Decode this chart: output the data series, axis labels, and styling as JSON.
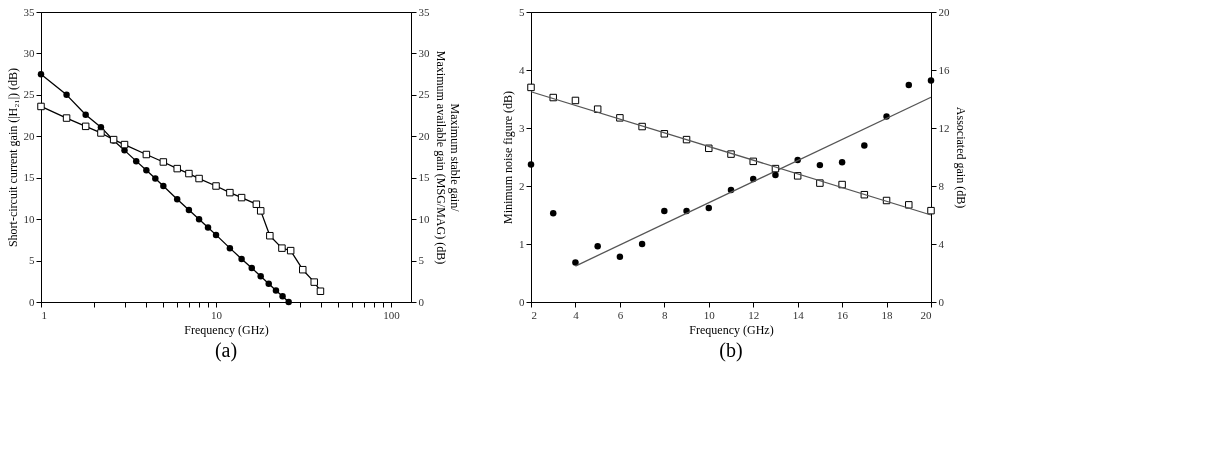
{
  "chart_data": [
    {
      "type": "line",
      "xlabel": "Frequency (GHz)",
      "ylabel": "Short-circuit current gain (|H₂₁|) (dB)",
      "y2label": "Maximum stable gain/\nMaximum available gain (MSG/MAG) (dB)",
      "annotations": [
        "(a)"
      ],
      "log": "x",
      "xlim": [
        1,
        130
      ],
      "xticks": [
        1,
        {
          "value": 2,
          "label": null
        },
        {
          "value": 3,
          "label": null
        },
        {
          "value": 4,
          "label": null
        },
        {
          "value": 5,
          "label": null
        },
        {
          "value": 6,
          "label": null
        },
        {
          "value": 7,
          "label": null
        },
        {
          "value": 8,
          "label": null
        },
        {
          "value": 9,
          "label": null
        },
        10,
        {
          "value": 20,
          "label": null
        },
        {
          "value": 30,
          "label": null
        },
        {
          "value": 40,
          "label": null
        },
        {
          "value": 50,
          "label": null
        },
        {
          "value": 60,
          "label": null
        },
        {
          "value": 70,
          "label": null
        },
        {
          "value": 80,
          "label": null
        },
        {
          "value": 90,
          "label": null
        },
        100
      ],
      "ylim": [
        0,
        35
      ],
      "yticks": [
        0,
        5,
        10,
        15,
        20,
        25,
        30,
        35
      ],
      "y2lim": [
        0,
        35
      ],
      "y2ticks": [
        0,
        5,
        10,
        15,
        20,
        25,
        30,
        35
      ],
      "series": [
        {
          "marker": "circle",
          "color": "#000000",
          "x": [
            1,
            1.4,
            1.8,
            2.2,
            2.6,
            3,
            3.5,
            4,
            4.5,
            5,
            6,
            7,
            8,
            9,
            10,
            12,
            14,
            16,
            18,
            20,
            22,
            24,
            26
          ],
          "values": [
            27.5,
            25.0,
            22.6,
            21.1,
            19.5,
            18.3,
            17.0,
            15.9,
            14.9,
            14.0,
            12.4,
            11.1,
            10.0,
            9.0,
            8.1,
            6.5,
            5.2,
            4.1,
            3.1,
            2.2,
            1.4,
            0.7,
            0.0
          ]
        },
        {
          "marker": "square",
          "axis": "y2",
          "color": "#000000",
          "x": [
            1,
            1.4,
            1.8,
            2.2,
            2.6,
            3,
            4,
            5,
            6,
            7,
            8,
            10,
            12,
            14,
            17,
            18,
            20.3,
            23.8,
            26.7,
            31.3,
            36.4,
            39.5
          ],
          "values": [
            23.6,
            22.2,
            21.2,
            20.4,
            19.6,
            19.0,
            17.8,
            16.9,
            16.1,
            15.5,
            14.9,
            14.0,
            13.2,
            12.6,
            11.8,
            11.0,
            8.0,
            6.5,
            6.2,
            3.9,
            2.4,
            1.3
          ]
        }
      ]
    },
    {
      "type": "scatter",
      "xlabel": "Frequency (GHz)",
      "ylabel": "Minimum noise figure (dB)",
      "y2label": "Associated gain (dB)",
      "annotations": [
        "(b)"
      ],
      "xlim": [
        2,
        20
      ],
      "xticks": [
        2,
        4,
        6,
        8,
        10,
        12,
        14,
        16,
        18,
        20
      ],
      "ylim": [
        0,
        5
      ],
      "yticks": [
        0,
        1,
        2,
        3,
        4,
        5
      ],
      "y2lim": [
        0,
        20
      ],
      "y2ticks": [
        0,
        4,
        8,
        12,
        16,
        20
      ],
      "series": [
        {
          "marker": "circle",
          "color": "#000000",
          "x": [
            2,
            3,
            4,
            5,
            6,
            7,
            8,
            9,
            10,
            11,
            12,
            13,
            14,
            15,
            16,
            17,
            18,
            19,
            20
          ],
          "values": [
            2.37,
            1.53,
            0.68,
            0.96,
            0.78,
            1.0,
            1.57,
            1.57,
            1.62,
            1.93,
            2.12,
            2.19,
            2.45,
            2.36,
            2.41,
            2.7,
            3.2,
            3.74,
            3.82
          ]
        },
        {
          "type": "line",
          "marker": "none",
          "color": "#555555",
          "x": [
            4,
            20
          ],
          "values": [
            0.62,
            3.53
          ]
        },
        {
          "marker": "square",
          "axis": "y2",
          "color": "#000000",
          "x": [
            2,
            3,
            4,
            5,
            6,
            7,
            8,
            9,
            10,
            11,
            12,
            13,
            14,
            15,
            16,
            17,
            18,
            19,
            20
          ],
          "values": [
            14.8,
            14.1,
            13.9,
            13.3,
            12.7,
            12.1,
            11.6,
            11.2,
            10.6,
            10.2,
            9.7,
            9.2,
            8.7,
            8.2,
            8.1,
            7.4,
            7.0,
            6.7,
            6.3
          ]
        },
        {
          "type": "line",
          "marker": "none",
          "axis": "y2",
          "color": "#555555",
          "x": [
            2,
            20
          ],
          "values": [
            14.5,
            6.0
          ]
        }
      ]
    }
  ]
}
